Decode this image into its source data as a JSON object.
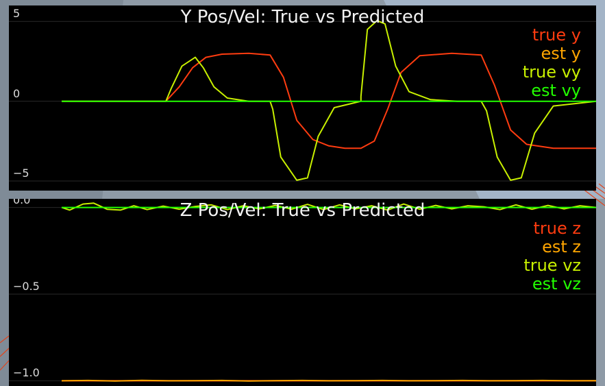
{
  "colors": {
    "background": "#8e9aa6",
    "panel": "#000000",
    "grid": "#2a2a2a",
    "true_pos": "#ff3c10",
    "est_pos": "#ffa500",
    "true_vel": "#c8f000",
    "est_vel": "#22ff00"
  },
  "chart_data": [
    {
      "type": "line",
      "title": "Y Pos/Vel: True vs Predicted",
      "xlabel": "",
      "ylabel": "",
      "xlim": [
        0,
        10
      ],
      "ylim": [
        -5.6,
        6.0
      ],
      "ytick_values": [
        -5,
        0,
        5
      ],
      "ytick_labels": [
        "−5",
        "0",
        "5"
      ],
      "grid": true,
      "legend_position": "top-right",
      "legend": [
        {
          "label": "true y",
          "color": "#ff3c10"
        },
        {
          "label": "est y",
          "color": "#ffa500"
        },
        {
          "label": "true vy",
          "color": "#c8f000"
        },
        {
          "label": "est vy",
          "color": "#22ff00"
        }
      ],
      "series": [
        {
          "name": "true y",
          "color": "#ff3c10",
          "x": [
            0.0,
            1.95,
            2.2,
            2.45,
            2.7,
            3.0,
            3.5,
            3.9,
            4.15,
            4.4,
            4.7,
            5.0,
            5.3,
            5.6,
            5.85,
            6.1,
            6.35,
            6.7,
            7.3,
            7.85,
            8.1,
            8.4,
            8.7,
            9.2,
            10.0
          ],
          "y": [
            0,
            0,
            0.9,
            2.1,
            2.75,
            2.95,
            3.0,
            2.9,
            1.5,
            -1.2,
            -2.4,
            -2.8,
            -2.95,
            -2.95,
            -2.5,
            -0.5,
            1.8,
            2.85,
            3.0,
            2.9,
            1.0,
            -1.8,
            -2.7,
            -2.95,
            -2.95
          ]
        },
        {
          "name": "est y",
          "color": "#ffa500",
          "x": [],
          "y": []
        },
        {
          "name": "true vy",
          "color": "#c8f000",
          "x": [
            0.0,
            1.95,
            2.05,
            2.25,
            2.5,
            2.65,
            2.85,
            3.1,
            3.5,
            3.9,
            3.95,
            4.1,
            4.4,
            4.6,
            4.8,
            5.1,
            5.6,
            5.6,
            5.72,
            5.9,
            6.05,
            6.25,
            6.5,
            6.9,
            7.4,
            7.85,
            7.95,
            8.15,
            8.4,
            8.6,
            8.85,
            9.2,
            10.0
          ],
          "y": [
            0,
            0,
            0.8,
            2.2,
            2.75,
            2.1,
            0.9,
            0.2,
            0.0,
            0.0,
            -0.5,
            -3.5,
            -4.95,
            -4.8,
            -2.2,
            -0.4,
            0.0,
            0.3,
            4.5,
            5.05,
            4.85,
            2.2,
            0.6,
            0.1,
            0.0,
            0.0,
            -0.6,
            -3.5,
            -4.95,
            -4.8,
            -2.0,
            -0.3,
            0.0
          ]
        },
        {
          "name": "est vy",
          "color": "#22ff00",
          "x": [
            0.0,
            10.0
          ],
          "y": [
            0,
            0
          ]
        }
      ]
    },
    {
      "type": "line",
      "title": "Z Pos/Vel: True vs Predicted",
      "xlabel": "",
      "ylabel": "",
      "xlim": [
        0,
        10
      ],
      "ylim": [
        -1.03,
        0.05
      ],
      "ytick_values": [
        0.0,
        -0.5,
        -1.0
      ],
      "ytick_labels": [
        "0.0",
        "−0.5",
        "−1.0"
      ],
      "grid": true,
      "legend_position": "top-right",
      "legend": [
        {
          "label": "true z",
          "color": "#ff3c10"
        },
        {
          "label": "est z",
          "color": "#ffa500"
        },
        {
          "label": "true vz",
          "color": "#c8f000"
        },
        {
          "label": "est vz",
          "color": "#22ff00"
        }
      ],
      "series": [
        {
          "name": "true z",
          "color": "#ff3c10",
          "x": [
            0.0,
            10.0
          ],
          "y": [
            -1.0,
            -1.0
          ]
        },
        {
          "name": "est z",
          "color": "#ffa500",
          "x": [
            0.0,
            0.5,
            1.0,
            1.5,
            2.0,
            2.5,
            3.0,
            3.5,
            4.0,
            4.5,
            5.0,
            5.5,
            6.0,
            6.5,
            7.0,
            7.5,
            8.0,
            8.5,
            9.0,
            9.5,
            10.0
          ],
          "y": [
            -1.0,
            -0.998,
            -1.001,
            -0.997,
            -1.0,
            -0.999,
            -0.998,
            -1.001,
            -0.999,
            -0.998,
            -1.0,
            -0.999,
            -0.998,
            -1.0,
            -0.999,
            -0.998,
            -1.0,
            -0.999,
            -0.998,
            -1.0,
            -0.999
          ]
        },
        {
          "name": "true vz",
          "color": "#c8f000",
          "x": [
            0.0,
            0.15,
            0.4,
            0.6,
            0.85,
            1.1,
            1.35,
            1.6,
            1.9,
            2.2,
            2.5,
            2.8,
            3.1,
            3.4,
            3.7,
            4.0,
            4.3,
            4.6,
            4.9,
            5.2,
            5.5,
            5.8,
            6.1,
            6.4,
            6.7,
            7.0,
            7.3,
            7.6,
            7.9,
            8.2,
            8.5,
            8.8,
            9.1,
            9.4,
            9.7,
            10.0
          ],
          "y": [
            0.0,
            -0.015,
            0.02,
            0.025,
            -0.01,
            -0.015,
            0.01,
            -0.012,
            0.008,
            -0.01,
            0.006,
            0.015,
            -0.012,
            0.01,
            -0.008,
            0.012,
            -0.01,
            0.018,
            -0.012,
            0.015,
            -0.008,
            0.01,
            -0.015,
            0.02,
            -0.01,
            0.012,
            -0.008,
            0.01,
            0.004,
            -0.012,
            0.015,
            -0.01,
            0.012,
            -0.008,
            0.01,
            0.0
          ]
        },
        {
          "name": "est vz",
          "color": "#22ff00",
          "x": [
            0.0,
            10.0
          ],
          "y": [
            0.0,
            0.0
          ]
        }
      ]
    }
  ]
}
